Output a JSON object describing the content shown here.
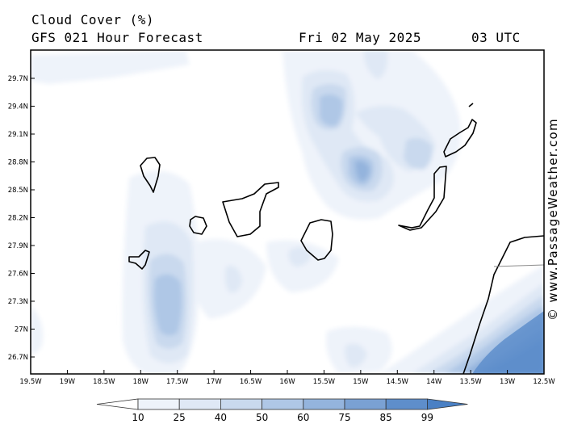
{
  "header": {
    "title": "Cloud Cover (%)",
    "subtitle": "GFS 021 Hour Forecast",
    "date": "Fri 02 May 2025",
    "time": "03 UTC"
  },
  "credit": "© www.PassageWeather.com",
  "axes": {
    "lat_labels": [
      "29.7N",
      "29.4N",
      "29.1N",
      "28.8N",
      "28.5N",
      "28.2N",
      "27.9N",
      "27.6N",
      "27.3N",
      "27N",
      "26.7N"
    ],
    "lon_labels": [
      "19.5W",
      "19W",
      "18.5W",
      "18W",
      "17.5W",
      "17W",
      "16.5W",
      "16W",
      "15.5W",
      "15W",
      "14.5W",
      "14W",
      "13.5W",
      "13W",
      "12.5W"
    ]
  },
  "legend": {
    "labels": [
      "10",
      "25",
      "40",
      "50",
      "60",
      "75",
      "85",
      "99"
    ],
    "colors": [
      "#ffffff",
      "#eef3fa",
      "#dfe8f5",
      "#c9d9ee",
      "#afc7e6",
      "#94b4dd",
      "#7aa1d3",
      "#5e8ecb",
      "#4a80c4"
    ]
  }
}
